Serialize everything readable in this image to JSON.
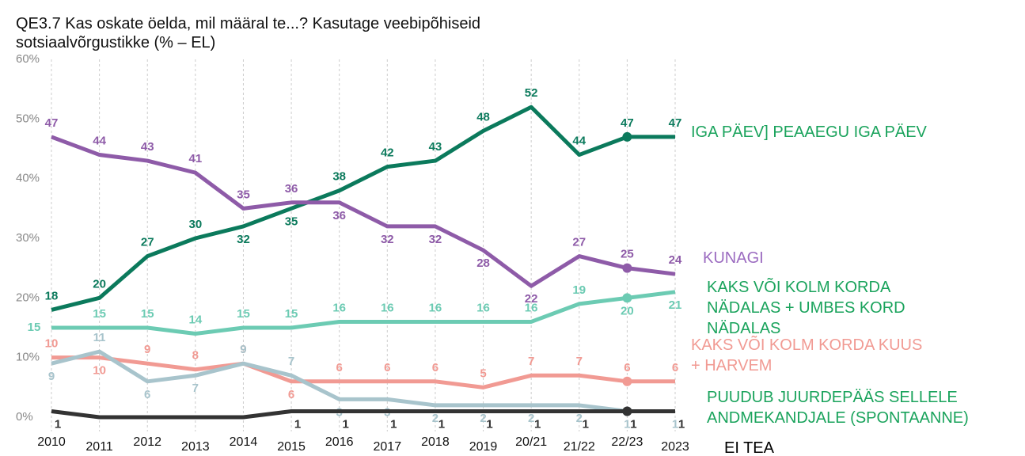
{
  "chart_data": {
    "type": "line",
    "title": "QE3.7 Kas oskate öelda, mil määral te...? Kasutage veebipõhiseid sotsiaalvõrgustikke (% – EL)",
    "categories": [
      "2010",
      "2011",
      "2012",
      "2013",
      "2014",
      "2015",
      "2016",
      "2017",
      "2018",
      "2019",
      "20/21",
      "21/22",
      "22/23",
      "2023"
    ],
    "ylim": [
      0,
      60
    ],
    "yticks": [
      {
        "value": 0,
        "label": "0%"
      },
      {
        "value": 10,
        "label": "10%"
      },
      {
        "value": 20,
        "label": "20%"
      },
      {
        "value": 30,
        "label": "30%"
      },
      {
        "value": 40,
        "label": "40%"
      },
      {
        "value": 50,
        "label": "50%"
      },
      {
        "value": 60,
        "label": "60%"
      }
    ],
    "grid": true,
    "series": [
      {
        "name": "IGA PÄEV] PEAAEGU IGA PÄEV",
        "color": "#0b7a5c",
        "label_color": "#1aa35c",
        "values": [
          18,
          20,
          27,
          30,
          32,
          35,
          38,
          42,
          43,
          48,
          52,
          44,
          47,
          47
        ]
      },
      {
        "name": "KUNAGI",
        "color": "#8e5ba8",
        "label_color": "#9b6bc0",
        "values": [
          47,
          44,
          43,
          41,
          35,
          36,
          36,
          32,
          32,
          28,
          22,
          27,
          25,
          24
        ]
      },
      {
        "name": "KAKS VÕI KOLM KORDA NÄDALAS + UMBES KORD NÄDALAS",
        "color": "#6ccbb3",
        "label_color": "#1aa35c",
        "values": [
          15,
          15,
          15,
          14,
          15,
          15,
          16,
          16,
          16,
          16,
          16,
          19,
          20,
          21
        ]
      },
      {
        "name": "KAKS VÕI KOLM KORDA KUUS + HARVEM",
        "color": "#f19a93",
        "label_color": "#f19a93",
        "values": [
          10,
          10,
          9,
          8,
          9,
          6,
          6,
          6,
          6,
          5,
          7,
          7,
          6,
          6
        ]
      },
      {
        "name": "PUUDUB JUURDEPÄÄS SELLELE ANDMEKANDJALE (SPONTAANNE)",
        "color": "#a8c4cc",
        "label_color": "#1aa35c",
        "values": [
          9,
          11,
          6,
          7,
          9,
          7,
          3,
          3,
          2,
          2,
          2,
          2,
          1,
          1
        ]
      },
      {
        "name": "EI TEA",
        "color": "#333333",
        "label_color": "#000000",
        "values": [
          1,
          0,
          0,
          0,
          0,
          1,
          1,
          1,
          1,
          1,
          1,
          1,
          1,
          1
        ],
        "value_labels": [
          "1",
          null,
          null,
          null,
          null,
          "1",
          "1",
          "1",
          "1",
          "1",
          "1",
          "1",
          "1",
          "1"
        ]
      }
    ]
  }
}
